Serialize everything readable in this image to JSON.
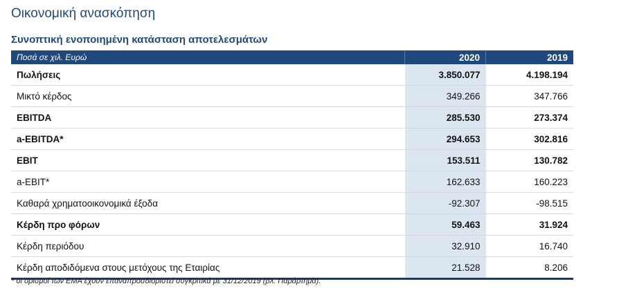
{
  "title": "Οικονομική ανασκόπηση",
  "subtitle": "Συνοπτική ενοποιημένη κατάσταση αποτελεσμάτων",
  "table": {
    "header": {
      "label": "Ποσά σε χιλ. Ευρώ",
      "col1": "2020",
      "col2": "2019"
    },
    "rows": [
      {
        "label": "Πωλήσεις",
        "v2020": "3.850.077",
        "v2019": "4.198.194",
        "bold": true
      },
      {
        "label": "Μικτό κέρδος",
        "v2020": "349.266",
        "v2019": "347.766",
        "bold": false
      },
      {
        "label": "EBITDA",
        "v2020": "285.530",
        "v2019": "273.374",
        "bold": true
      },
      {
        "label": "a-EBITDA*",
        "v2020": "294.653",
        "v2019": "302.816",
        "bold": true
      },
      {
        "label": "EBIT",
        "v2020": "153.511",
        "v2019": "130.782",
        "bold": true
      },
      {
        "label": "a-EBIT*",
        "v2020": "162.633",
        "v2019": "160.223",
        "bold": false
      },
      {
        "label": "Καθαρά χρηματοοικονομικά έξοδα",
        "v2020": "-92.307",
        "v2019": "-98.515",
        "bold": false
      },
      {
        "label": "Κέρδη προ φόρων",
        "v2020": "59.463",
        "v2019": "31.924",
        "bold": true
      },
      {
        "label": "Κέρδη περιόδου",
        "v2020": "32.910",
        "v2019": "16.740",
        "bold": false
      },
      {
        "label": "Κέρδη αποδιδόμενα στους μετόχους της Εταιρίας",
        "v2020": "21.528",
        "v2019": "8.206",
        "bold": false
      }
    ]
  },
  "footnote": "* οι ορισμοί των ΕΜΑ έχουν επαναπροσδιοριστεί συγκριτικά με 31/12/2019 (βλ. Παράρτημα)."
}
